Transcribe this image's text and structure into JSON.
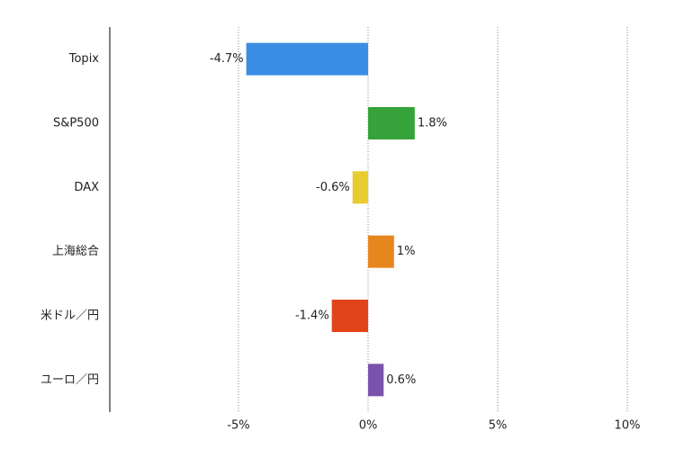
{
  "chart_data": {
    "type": "hbar",
    "categories": [
      "Topix",
      "S&P500",
      "DAX",
      "上海総合",
      "米ドル／円",
      "ユーロ／円"
    ],
    "values": [
      -4.7,
      1.8,
      -0.6,
      1,
      -1.4,
      0.6
    ],
    "value_labels": [
      "-4.7%",
      "1.8%",
      "-0.6%",
      "1%",
      "-1.4%",
      "0.6%"
    ],
    "colors": [
      "#3a8ee6",
      "#36a33a",
      "#e8cc2e",
      "#e8861e",
      "#e2441a",
      "#7b52ab"
    ],
    "xlim": [
      -10,
      10
    ],
    "xticks": [
      {
        "value": -5,
        "label": "-5%"
      },
      {
        "value": 0,
        "label": "0%"
      },
      {
        "value": 5,
        "label": "5%"
      },
      {
        "value": 10,
        "label": "10%"
      }
    ],
    "grid": true
  }
}
